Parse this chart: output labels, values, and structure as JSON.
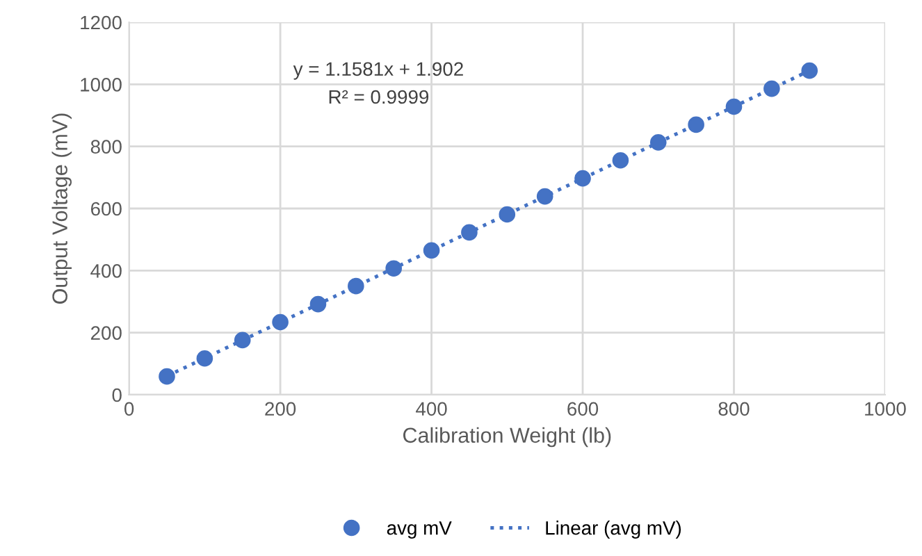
{
  "chart_data": {
    "type": "scatter",
    "xlabel": "Calibration Weight (lb)",
    "ylabel": "Output Voltage (mV)",
    "xlim": [
      0,
      1000
    ],
    "xticks": [
      0,
      200,
      400,
      600,
      800,
      1000
    ],
    "ylim": [
      0,
      1200
    ],
    "yticks": [
      0,
      200,
      400,
      600,
      800,
      1000,
      1200
    ],
    "grid": true,
    "legend": "bottom",
    "annotations": [
      "y = 1.1581x + 1.902",
      "R² = 0.9999"
    ],
    "series": [
      {
        "name": "avg mV",
        "marker": "circle",
        "color": "#4472c4",
        "x": [
          50,
          100,
          150,
          200,
          250,
          300,
          350,
          400,
          450,
          500,
          550,
          600,
          650,
          700,
          750,
          800,
          850,
          900
        ],
        "values": [
          59,
          117,
          176,
          234,
          292,
          350,
          407,
          465,
          523,
          581,
          639,
          697,
          755,
          813,
          870,
          928,
          986,
          1044
        ]
      },
      {
        "name": "Linear (avg mV)",
        "type": "line",
        "line_style": "dotted",
        "color": "#4472c4",
        "x": [
          50,
          900
        ],
        "values": [
          60,
          1044
        ]
      }
    ]
  }
}
